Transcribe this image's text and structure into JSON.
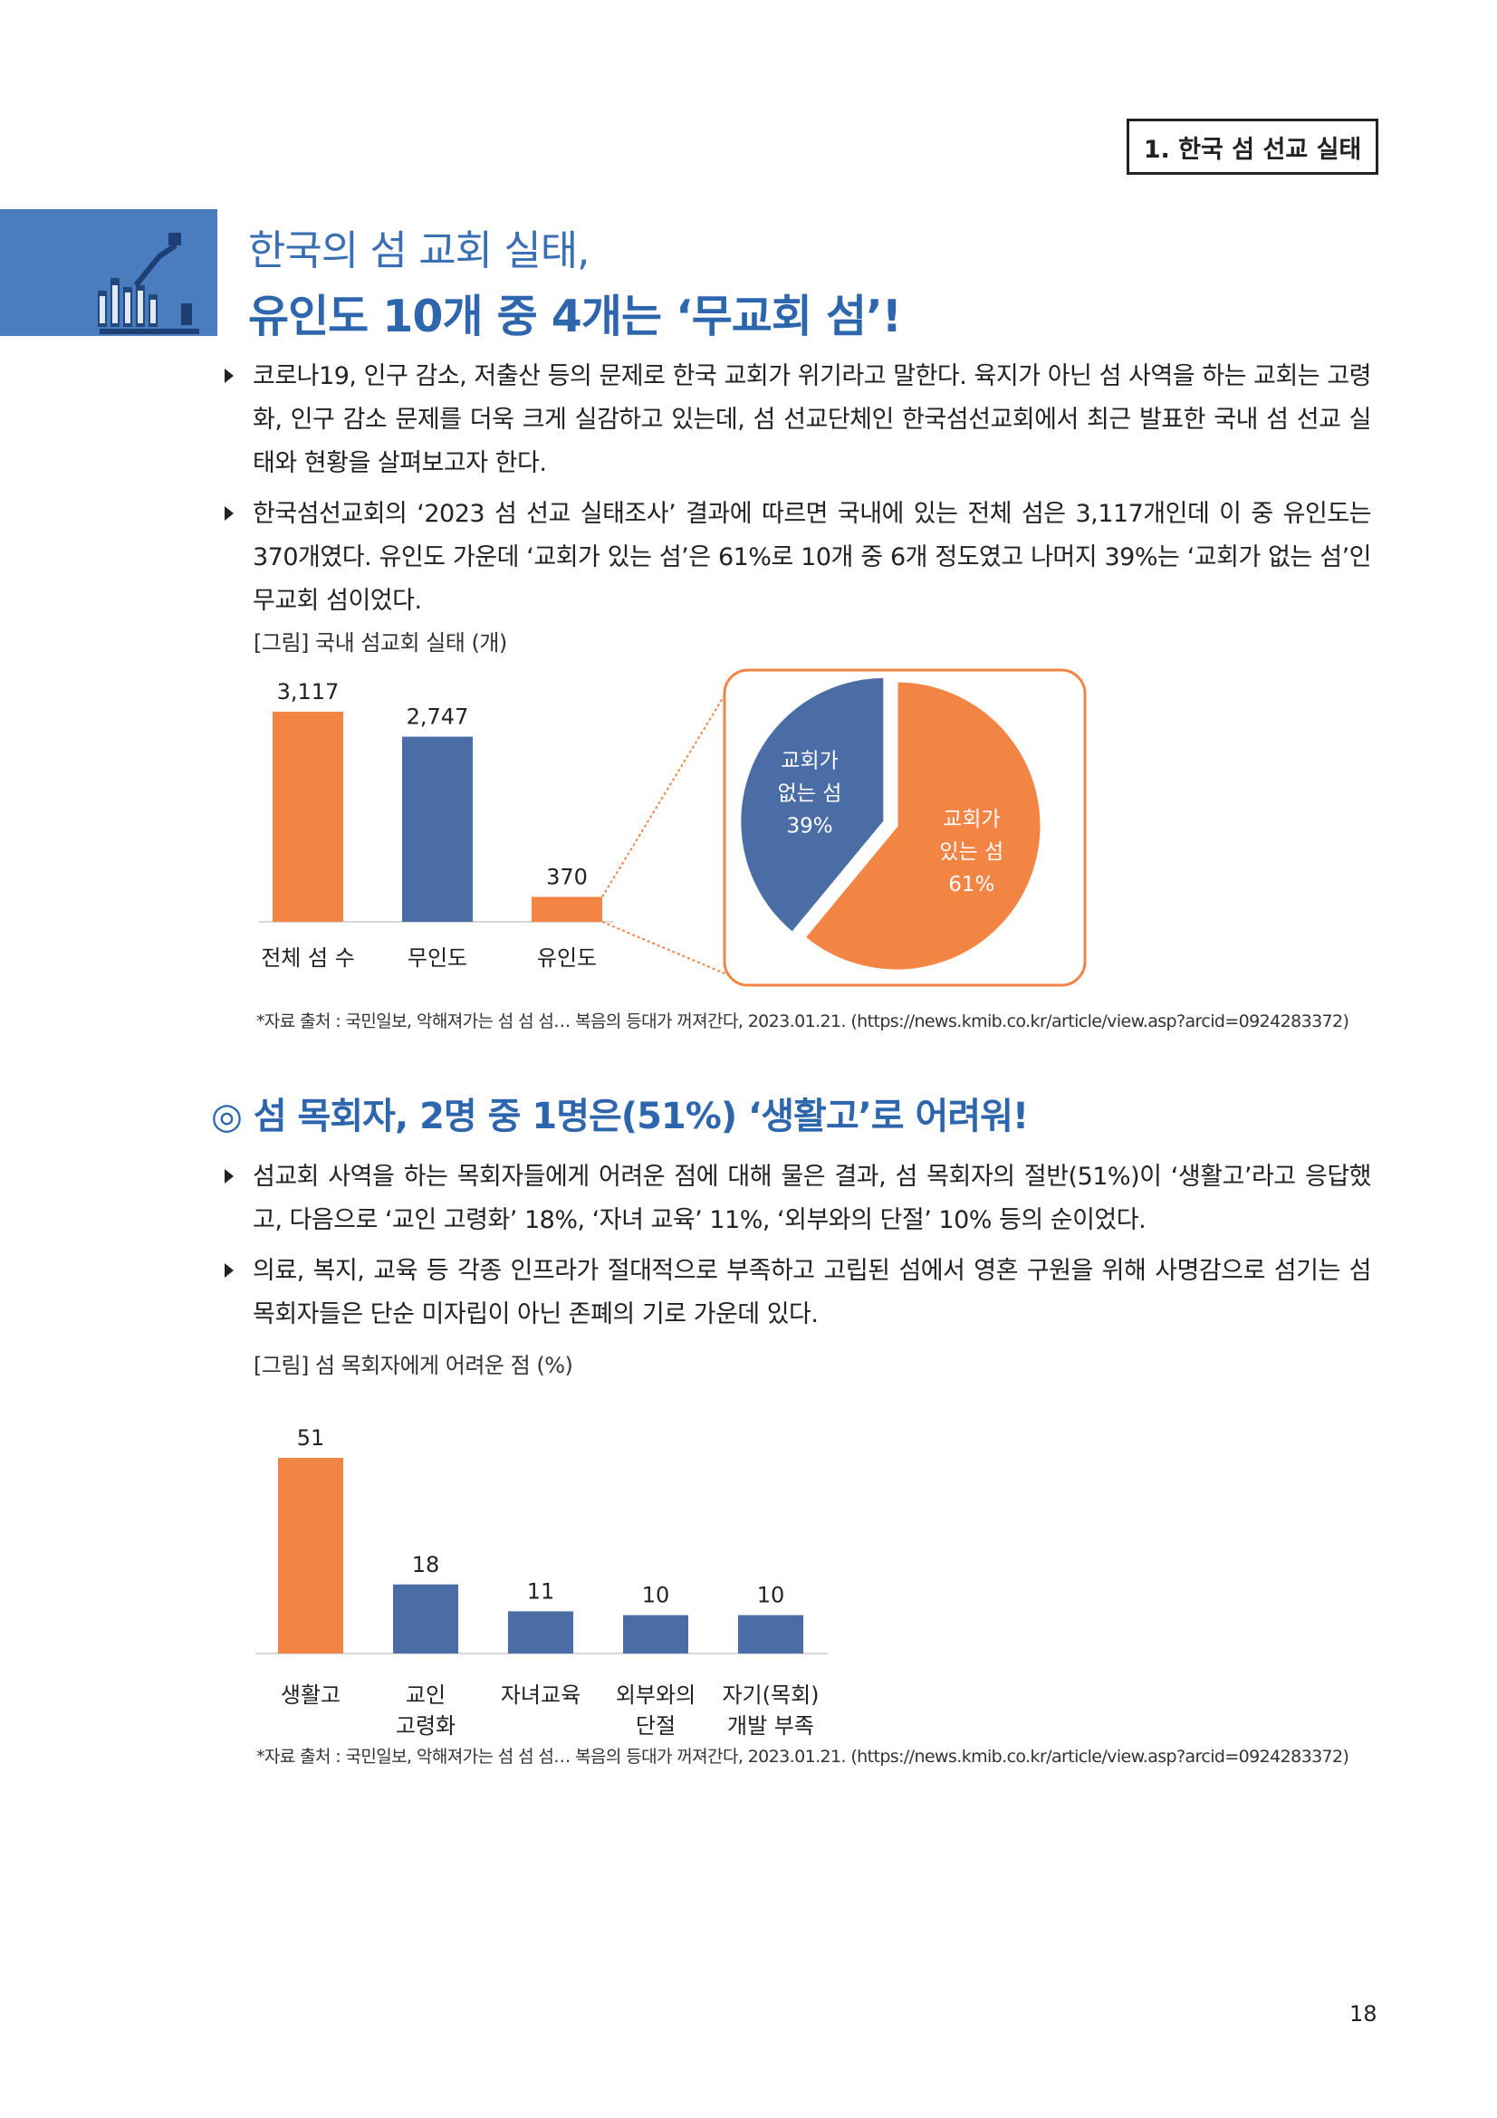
{
  "header": {
    "chapter_tag": "1. 한국 섬 선교 실태"
  },
  "title": {
    "line1": "한국의 섬 교회 실태,",
    "line2": "유인도 10개 중 4개는 ‘무교회 섬’!"
  },
  "intro_bullets": [
    "코로나19, 인구 감소, 저출산 등의 문제로 한국 교회가 위기라고 말한다. 육지가 아닌 섬 사역을 하는 교회는 고령화, 인구 감소 문제를 더욱 크게 실감하고 있는데, 섬 선교단체인 한국섬선교회에서 최근 발표한 국내 섬 선교 실태와 현황을 살펴보고자 한다.",
    "한국섬선교회의 ‘2023 섬 선교 실태조사’ 결과에 따르면 국내에 있는 전체 섬은 3,117개인데 이 중 유인도는 370개였다. 유인도 가운데 ‘교회가 있는 섬’은 61%로 10개 중 6개 정도였고 나머지 39%는 ‘교회가 없는 섬’인 무교회 섬이었다."
  ],
  "figure1": {
    "caption": "[그림] 국내 섬교회 실태 (개)",
    "source": "*자료 출처 : 국민일보, 악해져가는 섬 섬 섬… 복음의 등대가 꺼져간다, 2023.01.21. (https://news.kmib.co.kr/article/view.asp?arcid=0924283372)"
  },
  "section2": {
    "heading": "◎ 섬 목회자, 2명 중 1명은(51%) ‘생활고’로 어려워!",
    "bullets": [
      "섬교회 사역을 하는 목회자들에게 어려운 점에 대해 물은 결과, 섬 목회자의 절반(51%)이 ‘생활고’라고 응답했고, 다음으로 ‘교인 고령화’ 18%, ‘자녀 교육’ 11%, ‘외부와의 단절’ 10% 등의 순이었다.",
      "의료, 복지, 교육 등 각종 인프라가 절대적으로 부족하고 고립된 섬에서 영혼 구원을 위해 사명감으로 섬기는 섬 목회자들은 단순 미자립이 아닌 존폐의 기로 가운데 있다."
    ]
  },
  "figure2": {
    "caption": "[그림] 섬 목회자에게 어려운 점 (%)",
    "source": "*자료 출처 : 국민일보, 악해져가는 섬 섬 섬… 복음의 등대가 꺼져간다, 2023.01.21. (https://news.kmib.co.kr/article/view.asp?arcid=0924283372)"
  },
  "page_number": "18",
  "colors": {
    "orange": "#f28444",
    "blue": "#4a6da6",
    "title_blue": "#2e66ae"
  },
  "chart_data": [
    {
      "type": "bar",
      "categories": [
        "전체 섬 수",
        "무인도",
        "유인도"
      ],
      "values": [
        3117,
        2747,
        370
      ],
      "value_labels": [
        "3,117",
        "2,747",
        "370"
      ],
      "colors": [
        "#f28444",
        "#4a6da6",
        "#f28444"
      ],
      "ylim": [
        0,
        3117
      ]
    },
    {
      "type": "pie",
      "slices": [
        {
          "label_lines": [
            "교회가",
            "있는 섬",
            "61%"
          ],
          "value": 61,
          "color": "#f28444"
        },
        {
          "label_lines": [
            "교회가",
            "없는 섬",
            "39%"
          ],
          "value": 39,
          "color": "#4a6da6"
        }
      ]
    },
    {
      "type": "bar",
      "categories": [
        [
          "생활고"
        ],
        [
          "교인",
          "고령화"
        ],
        [
          "자녀교육"
        ],
        [
          "외부와의",
          "단절"
        ],
        [
          "자기(목회)",
          "개발 부족"
        ]
      ],
      "values": [
        51,
        18,
        11,
        10,
        10
      ],
      "value_labels": [
        "51",
        "18",
        "11",
        "10",
        "10"
      ],
      "colors": [
        "#f28444",
        "#4a6da6",
        "#4a6da6",
        "#4a6da6",
        "#4a6da6"
      ],
      "ylim": [
        0,
        51
      ]
    }
  ]
}
